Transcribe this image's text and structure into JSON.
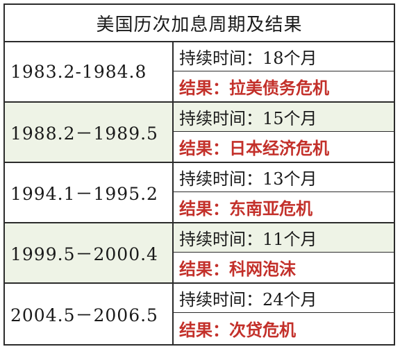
{
  "title": "美国历次加息周期及结果",
  "colors": {
    "result_red": "#c3302a",
    "shade_green": "#eef3e6",
    "border": "#2b2b2b"
  },
  "periods": [
    {
      "dates": "1983.2-1984.8",
      "duration": "持续时间：18个月",
      "result": "结果：拉美债务危机"
    },
    {
      "dates": "1988.2－1989.5",
      "duration": "持续时间：15个月",
      "result": "结果：日本经济危机"
    },
    {
      "dates": "1994.1－1995.2",
      "duration": "持续时间：13个月",
      "result": "结果：东南亚危机"
    },
    {
      "dates": "1999.5－2000.4",
      "duration": "持续时间：11个月",
      "result": "结果：科网泡沫"
    },
    {
      "dates": "2004.5－2006.5",
      "duration": "持续时间：24个月",
      "result": "结果：次贷危机"
    }
  ]
}
